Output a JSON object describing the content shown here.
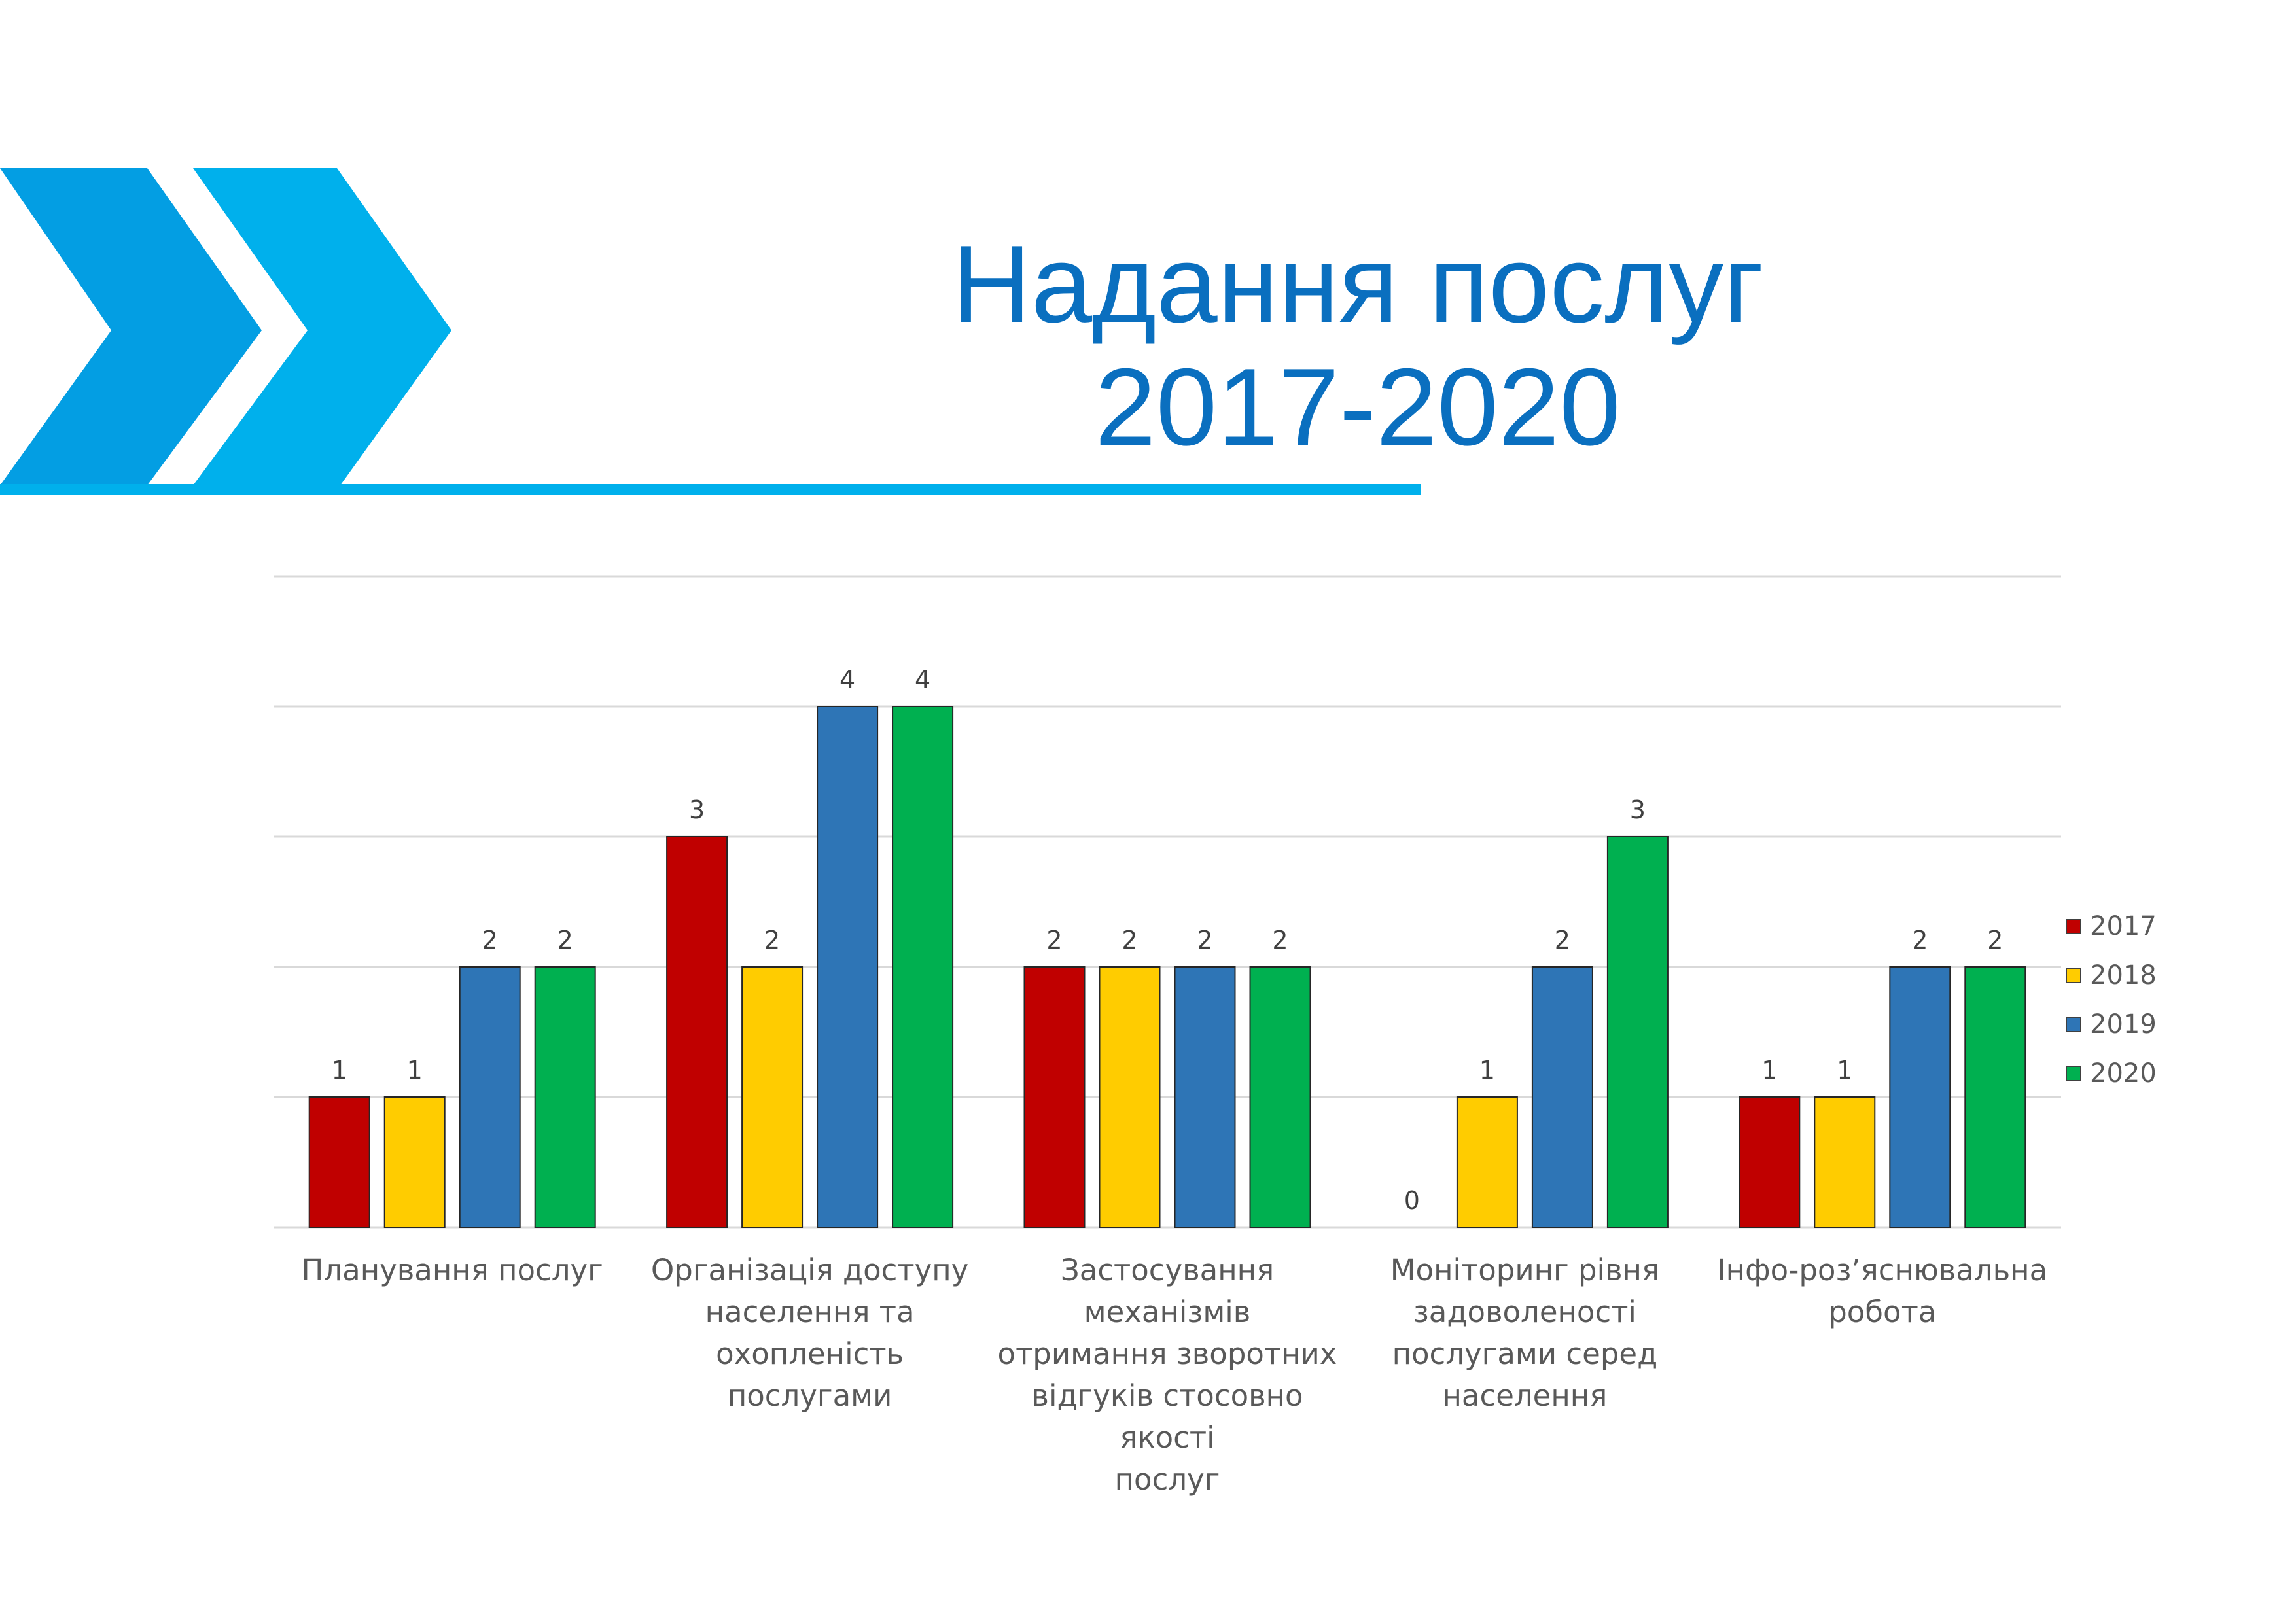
{
  "title": {
    "line1": "Надання послуг",
    "line2": "2017-2020"
  },
  "colors": {
    "title": "#0a6fbf",
    "chevron_dark": "#039ee3",
    "chevron_light": "#00b0ec",
    "underline": "#00b0ec",
    "gridline": "#d9d9d9",
    "label": "#595959"
  },
  "chart_data": {
    "type": "bar",
    "title": "",
    "xlabel": "",
    "ylabel": "",
    "ylim": [
      0,
      5
    ],
    "grid": true,
    "legend": "right",
    "categories": [
      [
        "Планування послуг"
      ],
      [
        "Організація доступу",
        "населення та",
        "охопленість послугами"
      ],
      [
        "Застосування механізмів",
        "отримання зворотних",
        "відгуків стосовно якості",
        "послуг"
      ],
      [
        "Моніторинг рівня",
        "задоволеності",
        "послугами серед",
        "населення"
      ],
      [
        "Інфо-роз’яснювальна",
        "робота"
      ]
    ],
    "series": [
      {
        "name": "2017",
        "color": "#c00000",
        "values": [
          1,
          3,
          2,
          0,
          1
        ]
      },
      {
        "name": "2018",
        "color": "#ffcc00",
        "values": [
          1,
          2,
          2,
          1,
          1
        ]
      },
      {
        "name": "2019",
        "color": "#2e75b6",
        "values": [
          2,
          4,
          2,
          2,
          2
        ]
      },
      {
        "name": "2020",
        "color": "#00b050",
        "values": [
          2,
          4,
          2,
          3,
          2
        ]
      }
    ]
  }
}
